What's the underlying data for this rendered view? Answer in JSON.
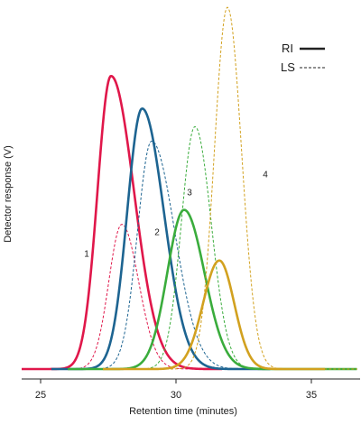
{
  "chart_data": {
    "type": "line",
    "title": "",
    "xlabel": "Retention time (minutes)",
    "ylabel": "Detector response (V)",
    "xlim": [
      24.3,
      36.8
    ],
    "ylim": [
      0,
      1.0
    ],
    "x_ticks": [
      25,
      30,
      35
    ],
    "y_ticks": [],
    "grid": false,
    "legend_position": "top-right",
    "legend": [
      {
        "label": "RI",
        "style": "solid"
      },
      {
        "label": "LS",
        "style": "dashed"
      }
    ],
    "series": [
      {
        "id": "1",
        "label": "1",
        "detector": "RI",
        "color": "#e0174a",
        "style": "solid",
        "peak_x": 27.6,
        "peak_y": 0.81,
        "sigma_left": 0.5,
        "sigma_right": 0.85,
        "x_start": 24.3,
        "x_end": 31.7
      },
      {
        "id": "1",
        "label": "",
        "detector": "LS",
        "color": "#e0174a",
        "style": "dashed",
        "peak_x": 28.0,
        "peak_y": 0.4,
        "sigma_left": 0.48,
        "sigma_right": 0.62,
        "x_start": 24.6,
        "x_end": 31.7
      },
      {
        "id": "2",
        "label": "2",
        "detector": "RI",
        "color": "#1d6491",
        "style": "solid",
        "peak_x": 28.75,
        "peak_y": 0.72,
        "sigma_left": 0.55,
        "sigma_right": 0.8,
        "x_start": 25.4,
        "x_end": 33.5
      },
      {
        "id": "2",
        "label": "",
        "detector": "LS",
        "color": "#1d6491",
        "style": "dashed",
        "peak_x": 29.1,
        "peak_y": 0.63,
        "sigma_left": 0.52,
        "sigma_right": 0.85,
        "x_start": 25.9,
        "x_end": 33.5
      },
      {
        "id": "3",
        "label": "3",
        "detector": "RI",
        "color": "#3aac3c",
        "style": "solid",
        "peak_x": 30.3,
        "peak_y": 0.44,
        "sigma_left": 0.62,
        "sigma_right": 0.75,
        "x_start": 26.0,
        "x_end": 36.7
      },
      {
        "id": "3",
        "label": "",
        "detector": "LS",
        "color": "#3aac3c",
        "style": "dashed",
        "peak_x": 30.7,
        "peak_y": 0.67,
        "sigma_left": 0.5,
        "sigma_right": 0.6,
        "x_start": 26.9,
        "x_end": 36.7
      },
      {
        "id": "4",
        "label": "4",
        "detector": "RI",
        "color": "#d2a11f",
        "style": "solid",
        "peak_x": 31.6,
        "peak_y": 0.3,
        "sigma_left": 0.6,
        "sigma_right": 0.55,
        "x_start": 27.3,
        "x_end": 35.5
      },
      {
        "id": "4",
        "label": "",
        "detector": "LS",
        "color": "#d2a11f",
        "style": "dashed",
        "peak_x": 31.9,
        "peak_y": 1.0,
        "sigma_left": 0.48,
        "sigma_right": 0.52,
        "x_start": 28.3,
        "x_end": 36.7
      }
    ],
    "curve_labels": [
      {
        "text": "1",
        "x": 26.7,
        "y": 0.31
      },
      {
        "text": "2",
        "x": 29.3,
        "y": 0.37
      },
      {
        "text": "3",
        "x": 30.5,
        "y": 0.48
      },
      {
        "text": "4",
        "x": 33.3,
        "y": 0.53
      }
    ]
  }
}
